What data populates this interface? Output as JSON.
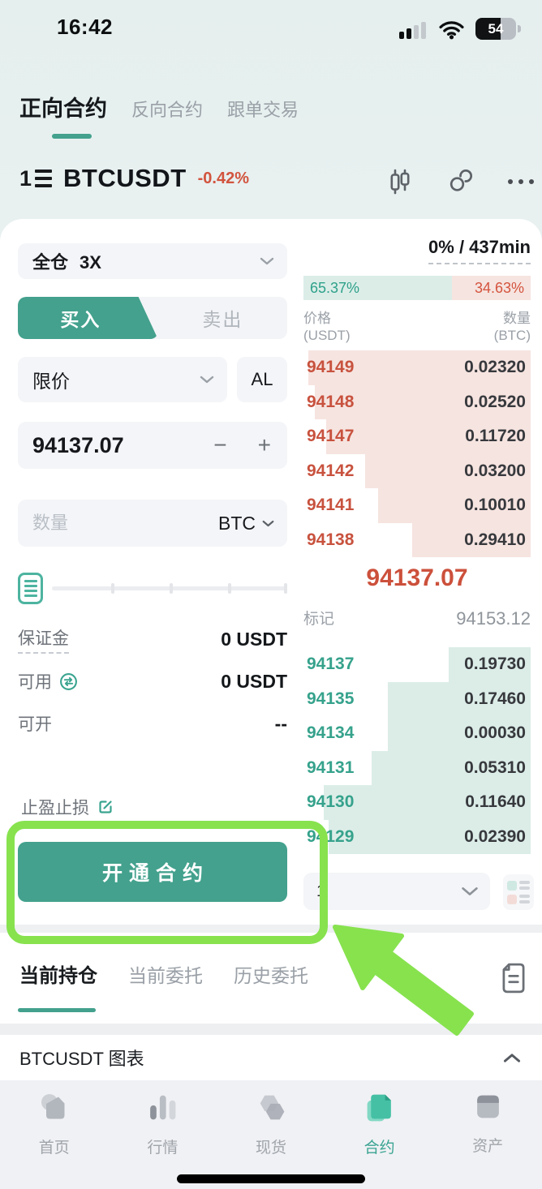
{
  "status_bar": {
    "time": "16:42",
    "battery_level": "54"
  },
  "top_tabs": {
    "items": [
      {
        "label": "正向合约",
        "active": true
      },
      {
        "label": "反向合约",
        "active": false
      },
      {
        "label": "跟单交易",
        "active": false
      }
    ]
  },
  "symbol_bar": {
    "symbol": "BTCUSDT",
    "change": "-0.42%"
  },
  "order_form": {
    "margin_mode": "全仓",
    "leverage": "3X",
    "buy_label": "买入",
    "sell_label": "卖出",
    "order_type": "限价",
    "al_label": "AL",
    "price_value": "94137.07",
    "minus": "−",
    "plus": "+",
    "qty_placeholder": "数量",
    "qty_unit": "BTC",
    "info_rows": [
      {
        "label": "保证金",
        "value": "0 USDT",
        "dashed": true,
        "icon": null
      },
      {
        "label": "可用",
        "value": "0 USDT",
        "dashed": false,
        "icon": "transfer-icon"
      },
      {
        "label": "可开",
        "value": "--",
        "dashed": false,
        "icon": null
      }
    ],
    "tpsl_label": "止盈止损",
    "submit_label": "开通合约"
  },
  "order_book": {
    "funding_countdown": "0% / 437min",
    "long_ratio": "65.37%",
    "short_ratio": "34.63%",
    "long_ratio_pct": 65.37,
    "price_header": "价格",
    "price_unit": "(USDT)",
    "qty_header": "数量",
    "qty_unit": "(BTC)",
    "asks": [
      {
        "price": "94149",
        "qty": "0.02320",
        "depth": 98
      },
      {
        "price": "94148",
        "qty": "0.02520",
        "depth": 95
      },
      {
        "price": "94147",
        "qty": "0.11720",
        "depth": 90
      },
      {
        "price": "94142",
        "qty": "0.03200",
        "depth": 73
      },
      {
        "price": "94141",
        "qty": "0.10010",
        "depth": 67
      },
      {
        "price": "94138",
        "qty": "0.29410",
        "depth": 52
      }
    ],
    "last_price": "94137.07",
    "mark_label": "标记",
    "mark_price": "94153.12",
    "bids": [
      {
        "price": "94137",
        "qty": "0.19730",
        "depth": 36
      },
      {
        "price": "94135",
        "qty": "0.17460",
        "depth": 63
      },
      {
        "price": "94134",
        "qty": "0.00030",
        "depth": 63
      },
      {
        "price": "94131",
        "qty": "0.05310",
        "depth": 70
      },
      {
        "price": "94130",
        "qty": "0.11640",
        "depth": 91
      },
      {
        "price": "94129",
        "qty": "0.02390",
        "depth": 89
      }
    ],
    "tick_size": "1"
  },
  "positions": {
    "tabs": [
      {
        "label": "当前持仓",
        "active": true
      },
      {
        "label": "当前委托",
        "active": false
      },
      {
        "label": "历史委托",
        "active": false
      }
    ]
  },
  "chart_section": {
    "title": "BTCUSDT 图表"
  },
  "bottom_nav": {
    "items": [
      {
        "label": "首页",
        "icon": "home-icon",
        "active": false
      },
      {
        "label": "行情",
        "icon": "markets-icon",
        "active": false
      },
      {
        "label": "现货",
        "icon": "spot-icon",
        "active": false
      },
      {
        "label": "合约",
        "icon": "futures-icon",
        "active": true
      },
      {
        "label": "资产",
        "icon": "assets-icon",
        "active": false
      }
    ]
  },
  "colors": {
    "accent_teal": "#43a18d",
    "ask_red": "#c8523e",
    "bid_teal": "#36a28c",
    "ask_depth_bg": "#f6e4e0",
    "bid_depth_bg": "#dcede8",
    "change_red": "#d2543e",
    "annotation_green": "#87e24e"
  }
}
